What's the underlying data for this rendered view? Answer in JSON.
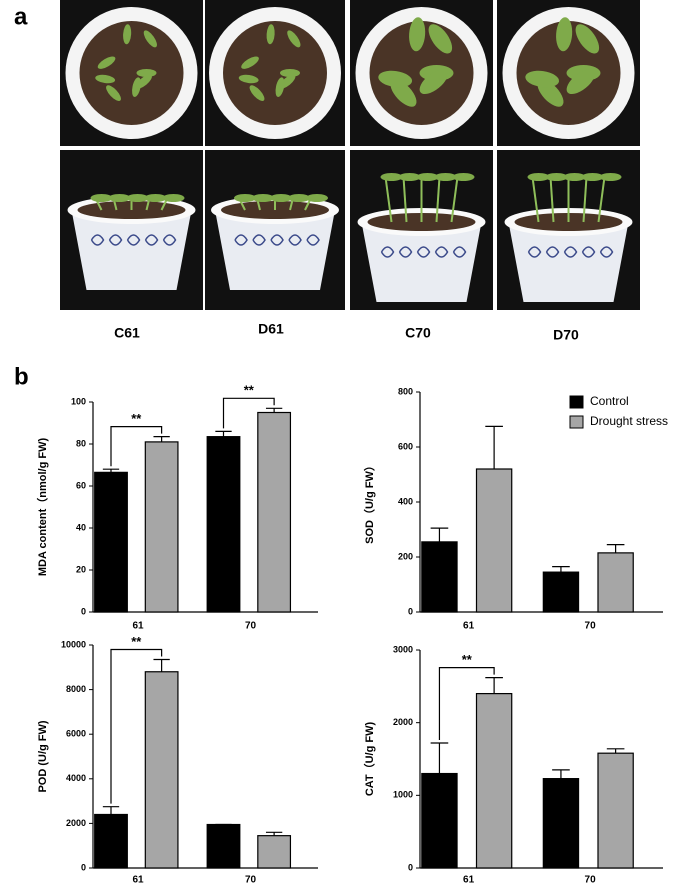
{
  "panel_labels": [
    "a",
    "b"
  ],
  "photo_labels": [
    "C61",
    "D61",
    "C70",
    "D70"
  ],
  "chart_data": [
    {
      "type": "bar",
      "y_label": "MDA content（nmol/g FW)",
      "categories": [
        "61",
        "70"
      ],
      "series": [
        {
          "color": "#000000",
          "values": [
            66.5,
            83.5
          ],
          "errors": [
            1.5,
            2.5
          ]
        },
        {
          "color": "#a6a6a6",
          "values": [
            81,
            95
          ],
          "errors": [
            2.5,
            2
          ]
        }
      ],
      "ylim": [
        0,
        100
      ],
      "yticks": [
        0,
        20,
        40,
        60,
        80,
        100
      ],
      "annotations": [
        {
          "label": "**",
          "x": "61"
        },
        {
          "label": "**",
          "x": "70"
        }
      ]
    },
    {
      "type": "bar",
      "y_label": "SOD（U/g FW）",
      "categories": [
        "61",
        "70"
      ],
      "series": [
        {
          "name": "Control",
          "color": "#000000",
          "values": [
            255,
            145
          ],
          "errors": [
            50,
            20
          ]
        },
        {
          "name": "Drought stress",
          "color": "#a6a6a6",
          "values": [
            520,
            215
          ],
          "errors": [
            155,
            30
          ]
        }
      ],
      "ylim": [
        0,
        800
      ],
      "yticks": [
        0,
        200,
        400,
        600,
        800
      ],
      "legend": "upper right",
      "annotations": []
    },
    {
      "type": "bar",
      "y_label": "POD (U/g FW)",
      "categories": [
        "61",
        "70"
      ],
      "series": [
        {
          "color": "#000000",
          "values": [
            2400,
            1950
          ],
          "errors": [
            350,
            0
          ]
        },
        {
          "color": "#a6a6a6",
          "values": [
            8800,
            1450
          ],
          "errors": [
            550,
            150
          ]
        }
      ],
      "ylim": [
        0,
        10000
      ],
      "yticks": [
        0,
        2000,
        4000,
        6000,
        8000,
        10000
      ],
      "annotations": [
        {
          "label": "**",
          "x": "61"
        }
      ]
    },
    {
      "type": "bar",
      "y_label": "CAT（U/g FW)",
      "categories": [
        "61",
        "70"
      ],
      "series": [
        {
          "color": "#000000",
          "values": [
            1300,
            1230
          ],
          "errors": [
            420,
            120
          ]
        },
        {
          "color": "#a6a6a6",
          "values": [
            2400,
            1580
          ],
          "errors": [
            220,
            60
          ]
        }
      ],
      "ylim": [
        0,
        3000
      ],
      "yticks": [
        0,
        1000,
        2000,
        3000
      ],
      "annotations": [
        {
          "label": "**",
          "x": "61"
        }
      ]
    }
  ]
}
